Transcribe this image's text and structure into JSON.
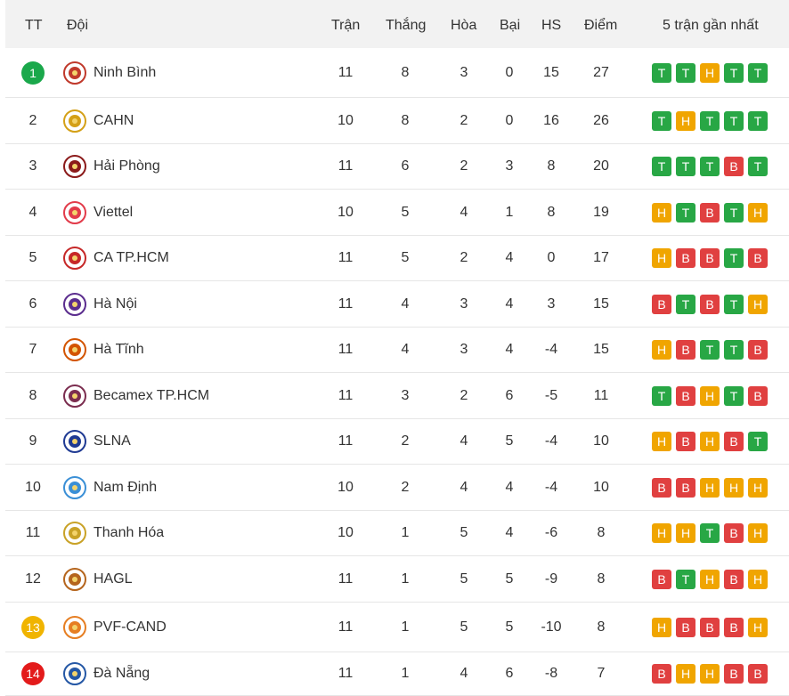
{
  "header": {
    "rank": "TT",
    "team": "Đội",
    "played": "Trận",
    "won": "Thắng",
    "draw": "Hòa",
    "lost": "Bại",
    "gd": "HS",
    "points": "Điểm",
    "form": "5 trận gần nhất"
  },
  "colors": {
    "T": "#28a745",
    "H": "#f0a500",
    "B": "#e04040",
    "rank_green": "#1aa84b",
    "rank_yellow": "#f0b400",
    "rank_red": "#e31b1b"
  },
  "rows": [
    {
      "rank": "1",
      "rank_style": "green",
      "team": "Ninh Bình",
      "logo": "ninh-binh-crest-icon",
      "played": "11",
      "won": "8",
      "draw": "3",
      "lost": "0",
      "gd": "15",
      "points": "27",
      "form": [
        "T",
        "T",
        "H",
        "T",
        "T"
      ]
    },
    {
      "rank": "2",
      "rank_style": "plain",
      "team": "CAHN",
      "logo": "cahn-crest-icon",
      "played": "10",
      "won": "8",
      "draw": "2",
      "lost": "0",
      "gd": "16",
      "points": "26",
      "form": [
        "T",
        "H",
        "T",
        "T",
        "T"
      ]
    },
    {
      "rank": "3",
      "rank_style": "plain",
      "team": "Hải Phòng",
      "logo": "hai-phong-crest-icon",
      "played": "11",
      "won": "6",
      "draw": "2",
      "lost": "3",
      "gd": "8",
      "points": "20",
      "form": [
        "T",
        "T",
        "T",
        "B",
        "T"
      ]
    },
    {
      "rank": "4",
      "rank_style": "plain",
      "team": "Viettel",
      "logo": "viettel-crest-icon",
      "played": "10",
      "won": "5",
      "draw": "4",
      "lost": "1",
      "gd": "8",
      "points": "19",
      "form": [
        "H",
        "T",
        "B",
        "T",
        "H"
      ]
    },
    {
      "rank": "5",
      "rank_style": "plain",
      "team": "CA TP.HCM",
      "logo": "ca-tphcm-crest-icon",
      "played": "11",
      "won": "5",
      "draw": "2",
      "lost": "4",
      "gd": "0",
      "points": "17",
      "form": [
        "H",
        "B",
        "B",
        "T",
        "B"
      ]
    },
    {
      "rank": "6",
      "rank_style": "plain",
      "team": "Hà Nội",
      "logo": "ha-noi-crest-icon",
      "played": "11",
      "won": "4",
      "draw": "3",
      "lost": "4",
      "gd": "3",
      "points": "15",
      "form": [
        "B",
        "T",
        "B",
        "T",
        "H"
      ]
    },
    {
      "rank": "7",
      "rank_style": "plain",
      "team": "Hà Tĩnh",
      "logo": "ha-tinh-crest-icon",
      "played": "11",
      "won": "4",
      "draw": "3",
      "lost": "4",
      "gd": "-4",
      "points": "15",
      "form": [
        "H",
        "B",
        "T",
        "T",
        "B"
      ]
    },
    {
      "rank": "8",
      "rank_style": "plain",
      "team": "Becamex TP.HCM",
      "logo": "becamex-crest-icon",
      "played": "11",
      "won": "3",
      "draw": "2",
      "lost": "6",
      "gd": "-5",
      "points": "11",
      "form": [
        "T",
        "B",
        "H",
        "T",
        "B"
      ]
    },
    {
      "rank": "9",
      "rank_style": "plain",
      "team": "SLNA",
      "logo": "slna-crest-icon",
      "played": "11",
      "won": "2",
      "draw": "4",
      "lost": "5",
      "gd": "-4",
      "points": "10",
      "form": [
        "H",
        "B",
        "H",
        "B",
        "T"
      ]
    },
    {
      "rank": "10",
      "rank_style": "plain",
      "team": "Nam Định",
      "logo": "nam-dinh-crest-icon",
      "played": "10",
      "won": "2",
      "draw": "4",
      "lost": "4",
      "gd": "-4",
      "points": "10",
      "form": [
        "B",
        "B",
        "H",
        "H",
        "H"
      ]
    },
    {
      "rank": "11",
      "rank_style": "plain",
      "team": "Thanh Hóa",
      "logo": "thanh-hoa-crest-icon",
      "played": "10",
      "won": "1",
      "draw": "5",
      "lost": "4",
      "gd": "-6",
      "points": "8",
      "form": [
        "H",
        "H",
        "T",
        "B",
        "H"
      ]
    },
    {
      "rank": "12",
      "rank_style": "plain",
      "team": "HAGL",
      "logo": "hagl-crest-icon",
      "played": "11",
      "won": "1",
      "draw": "5",
      "lost": "5",
      "gd": "-9",
      "points": "8",
      "form": [
        "B",
        "T",
        "H",
        "B",
        "H"
      ]
    },
    {
      "rank": "13",
      "rank_style": "yellow",
      "team": "PVF-CAND",
      "logo": "pvf-cand-crest-icon",
      "played": "11",
      "won": "1",
      "draw": "5",
      "lost": "5",
      "gd": "-10",
      "points": "8",
      "form": [
        "H",
        "B",
        "B",
        "B",
        "H"
      ]
    },
    {
      "rank": "14",
      "rank_style": "red",
      "team": "Đà Nẵng",
      "logo": "da-nang-crest-icon",
      "played": "11",
      "won": "1",
      "draw": "4",
      "lost": "6",
      "gd": "-8",
      "points": "7",
      "form": [
        "B",
        "H",
        "H",
        "B",
        "B"
      ]
    }
  ]
}
